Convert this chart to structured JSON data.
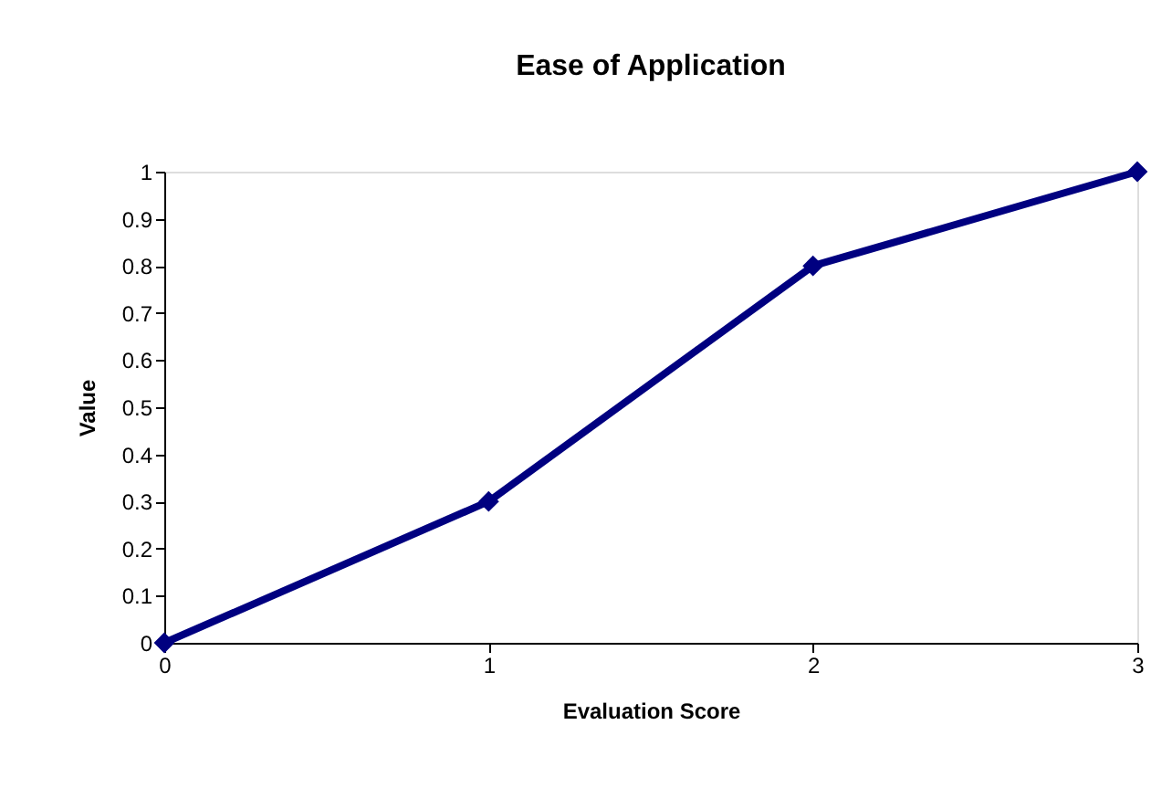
{
  "chart_data": {
    "type": "line",
    "title": "Ease of Application",
    "xlabel": "Evaluation Score",
    "ylabel": "Value",
    "x": [
      0,
      1,
      2,
      3
    ],
    "series": [
      {
        "color": "#000080",
        "values": [
          0,
          0.3,
          0.8,
          1
        ]
      }
    ],
    "xlim": [
      0,
      3
    ],
    "xticks": [
      0,
      1,
      2,
      3
    ],
    "ylim": [
      0,
      1
    ],
    "yticks": [
      0,
      0.1,
      0.2,
      0.3,
      0.4,
      0.5,
      0.6,
      0.7,
      0.8,
      0.9,
      1
    ],
    "grid": false,
    "marker": "diamond",
    "line_style": "solid"
  }
}
